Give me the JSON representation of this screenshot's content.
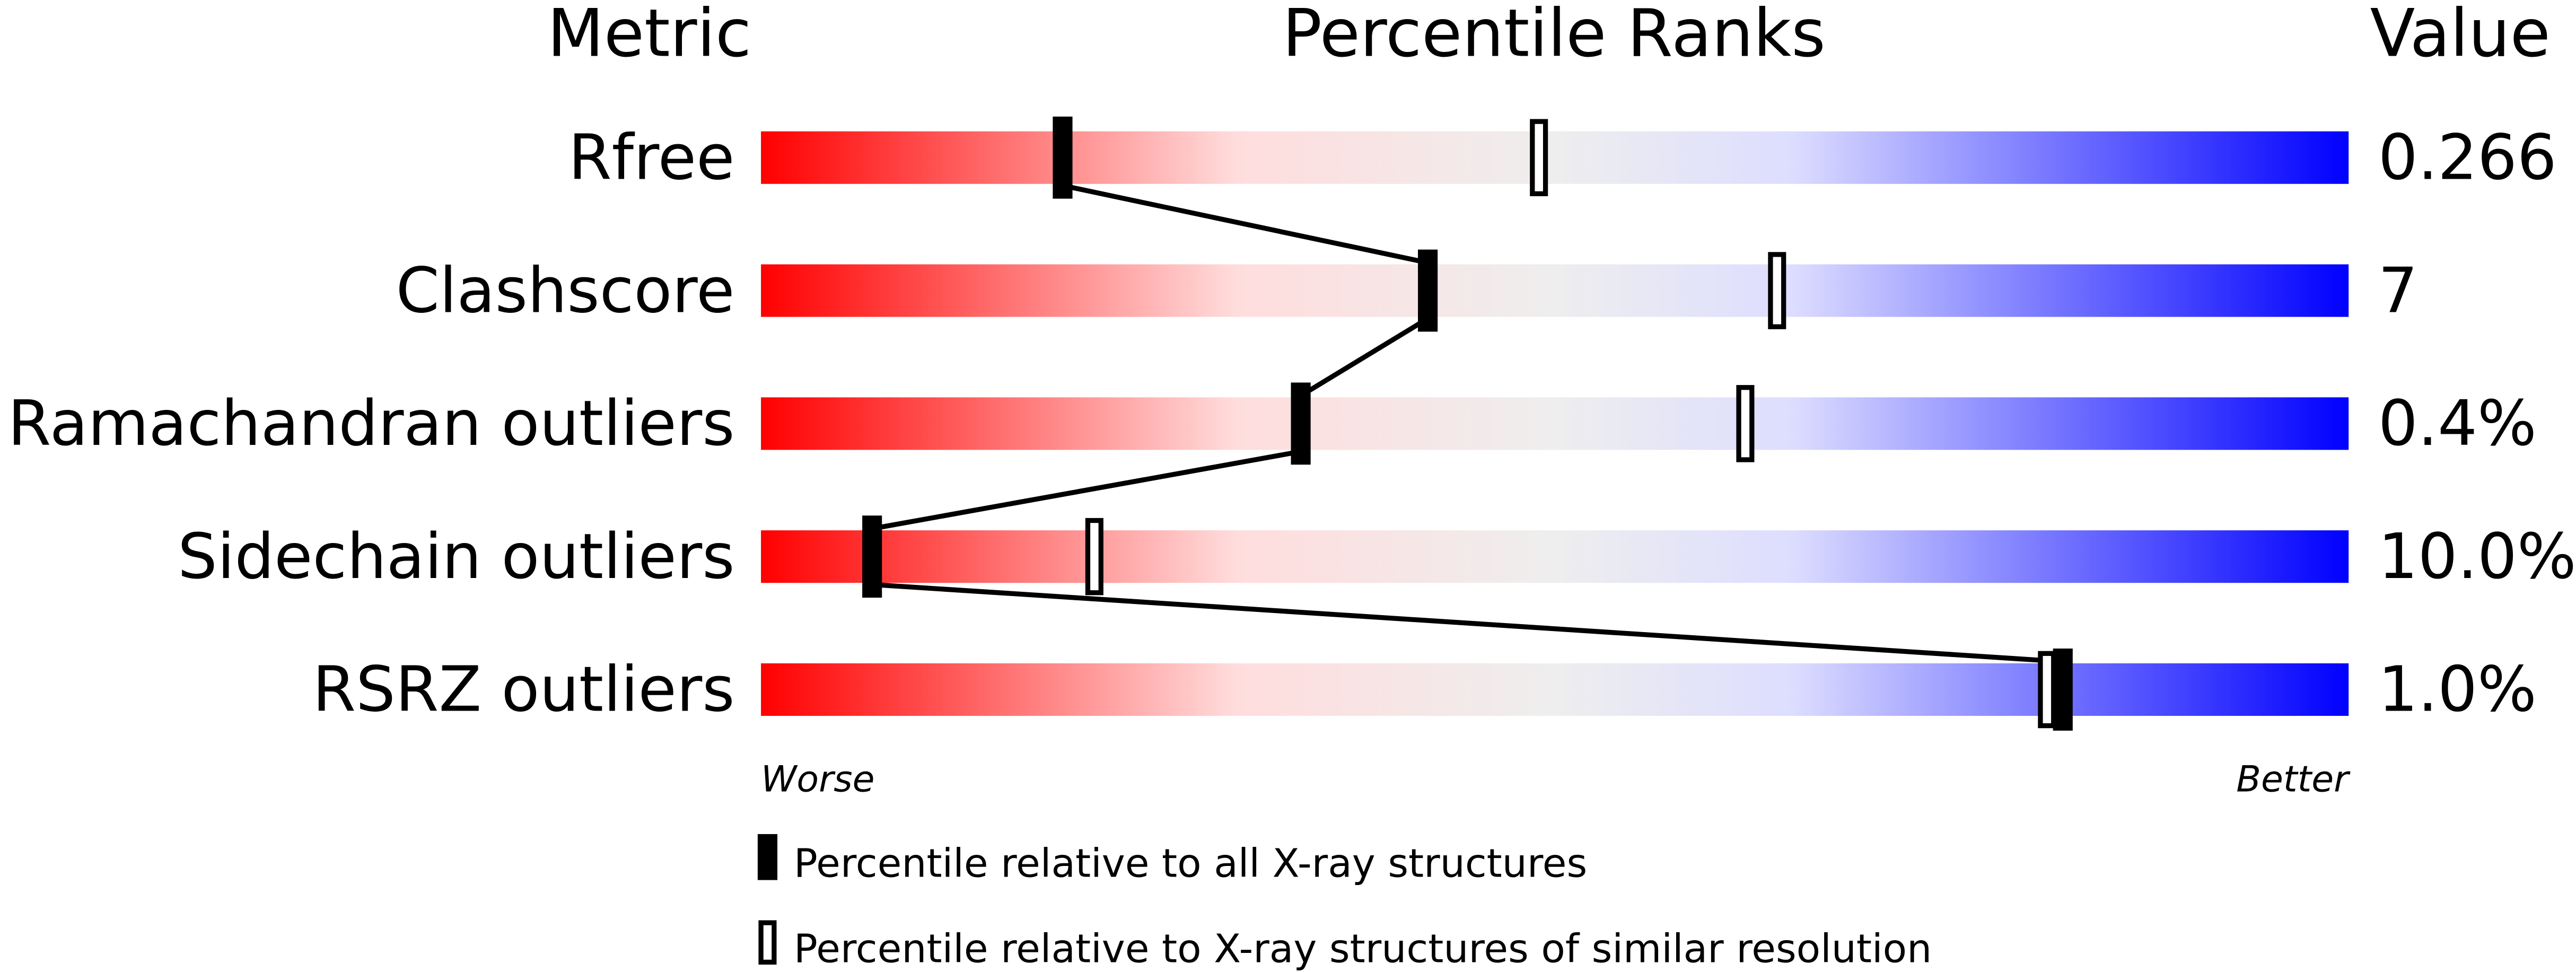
{
  "chart_data": {
    "type": "percentile-bar",
    "headers": {
      "metric": "Metric",
      "percentile": "Percentile Ranks",
      "value": "Value"
    },
    "xlim": [
      0,
      100
    ],
    "axis_labels": {
      "left": "Worse",
      "right": "Better"
    },
    "gradient_colors": [
      "#ff0000",
      "#ffdddd",
      "#eeeeee",
      "#ddddff",
      "#0000ff"
    ],
    "metrics": [
      {
        "name": "Rfree",
        "value": "0.266",
        "percentile_all": 19,
        "percentile_similar": 49
      },
      {
        "name": "Clashscore",
        "value": "7",
        "percentile_all": 42,
        "percentile_similar": 64
      },
      {
        "name": "Ramachandran outliers",
        "value": "0.4%",
        "percentile_all": 34,
        "percentile_similar": 62
      },
      {
        "name": "Sidechain outliers",
        "value": "10.0%",
        "percentile_all": 7,
        "percentile_similar": 21
      },
      {
        "name": "RSRZ outliers",
        "value": "1.0%",
        "percentile_all": 82,
        "percentile_similar": 81
      }
    ],
    "legend": [
      {
        "marker": "filled",
        "label": "Percentile relative to all X-ray structures"
      },
      {
        "marker": "open",
        "label": "Percentile relative to X-ray structures of similar resolution"
      }
    ]
  }
}
